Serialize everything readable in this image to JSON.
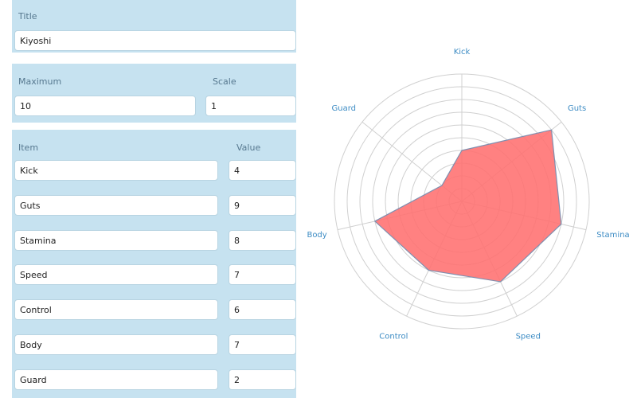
{
  "form": {
    "title": {
      "label": "Title",
      "value": "Kiyoshi"
    },
    "maximum": {
      "label": "Maximum",
      "value": 10
    },
    "scale": {
      "label": "Scale",
      "value": 1
    },
    "items_header": {
      "item": "Item",
      "value": "Value"
    },
    "items": [
      {
        "name": "Kick",
        "value": 4
      },
      {
        "name": "Guts",
        "value": 9
      },
      {
        "name": "Stamina",
        "value": 8
      },
      {
        "name": "Speed",
        "value": 7
      },
      {
        "name": "Control",
        "value": 6
      },
      {
        "name": "Body",
        "value": 7
      },
      {
        "name": "Guard",
        "value": 2
      }
    ]
  }
}
